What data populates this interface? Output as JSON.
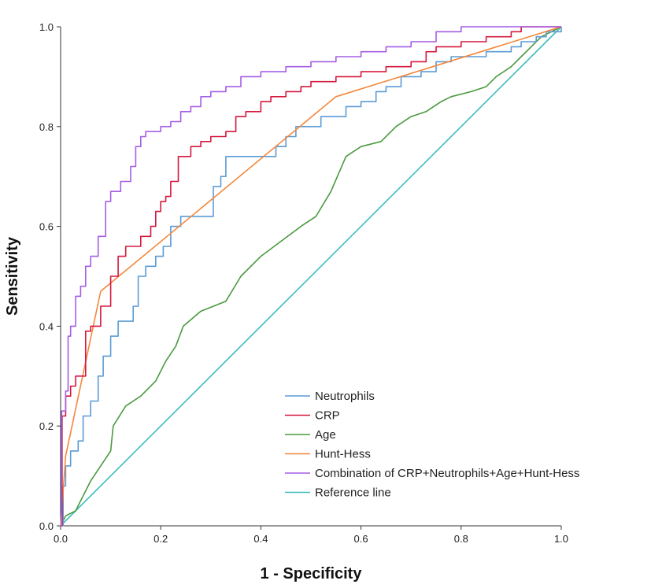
{
  "chart_data": {
    "type": "line",
    "title": "",
    "xlabel": "1 - Specificity",
    "ylabel": "Sensitivity",
    "xlim": [
      0,
      1
    ],
    "ylim": [
      0,
      1
    ],
    "xticks": [
      "0.0",
      "0.2",
      "0.4",
      "0.6",
      "0.8",
      "1.0"
    ],
    "yticks": [
      "0.0",
      "0.2",
      "0.4",
      "0.6",
      "0.8",
      "1.0"
    ],
    "legend_position": "bottom-right",
    "series": [
      {
        "name": "Neutrophils",
        "color": "#5b9bd5",
        "step": true,
        "points": [
          [
            0,
            0
          ],
          [
            0.005,
            0.08
          ],
          [
            0.01,
            0.12
          ],
          [
            0.02,
            0.15
          ],
          [
            0.035,
            0.17
          ],
          [
            0.045,
            0.22
          ],
          [
            0.06,
            0.25
          ],
          [
            0.075,
            0.3
          ],
          [
            0.085,
            0.34
          ],
          [
            0.1,
            0.38
          ],
          [
            0.115,
            0.41
          ],
          [
            0.13,
            0.41
          ],
          [
            0.145,
            0.44
          ],
          [
            0.155,
            0.5
          ],
          [
            0.17,
            0.52
          ],
          [
            0.19,
            0.54
          ],
          [
            0.205,
            0.56
          ],
          [
            0.22,
            0.6
          ],
          [
            0.24,
            0.62
          ],
          [
            0.3,
            0.62
          ],
          [
            0.305,
            0.68
          ],
          [
            0.32,
            0.7
          ],
          [
            0.33,
            0.74
          ],
          [
            0.42,
            0.74
          ],
          [
            0.43,
            0.76
          ],
          [
            0.45,
            0.78
          ],
          [
            0.47,
            0.8
          ],
          [
            0.5,
            0.8
          ],
          [
            0.52,
            0.82
          ],
          [
            0.55,
            0.82
          ],
          [
            0.57,
            0.84
          ],
          [
            0.6,
            0.85
          ],
          [
            0.63,
            0.87
          ],
          [
            0.65,
            0.88
          ],
          [
            0.68,
            0.9
          ],
          [
            0.72,
            0.91
          ],
          [
            0.75,
            0.93
          ],
          [
            0.78,
            0.94
          ],
          [
            0.8,
            0.94
          ],
          [
            0.85,
            0.95
          ],
          [
            0.9,
            0.96
          ],
          [
            0.92,
            0.97
          ],
          [
            0.95,
            0.98
          ],
          [
            0.97,
            0.99
          ],
          [
            1,
            1
          ]
        ]
      },
      {
        "name": "CRP",
        "color": "#d4183d",
        "step": true,
        "points": [
          [
            0,
            0
          ],
          [
            0.003,
            0.22
          ],
          [
            0.01,
            0.26
          ],
          [
            0.02,
            0.28
          ],
          [
            0.03,
            0.3
          ],
          [
            0.05,
            0.39
          ],
          [
            0.06,
            0.4
          ],
          [
            0.08,
            0.44
          ],
          [
            0.1,
            0.5
          ],
          [
            0.115,
            0.54
          ],
          [
            0.13,
            0.56
          ],
          [
            0.16,
            0.58
          ],
          [
            0.18,
            0.6
          ],
          [
            0.19,
            0.63
          ],
          [
            0.2,
            0.65
          ],
          [
            0.21,
            0.66
          ],
          [
            0.22,
            0.69
          ],
          [
            0.235,
            0.74
          ],
          [
            0.26,
            0.76
          ],
          [
            0.28,
            0.77
          ],
          [
            0.3,
            0.78
          ],
          [
            0.33,
            0.79
          ],
          [
            0.35,
            0.82
          ],
          [
            0.37,
            0.83
          ],
          [
            0.4,
            0.85
          ],
          [
            0.42,
            0.86
          ],
          [
            0.45,
            0.87
          ],
          [
            0.48,
            0.88
          ],
          [
            0.5,
            0.89
          ],
          [
            0.55,
            0.9
          ],
          [
            0.6,
            0.91
          ],
          [
            0.65,
            0.92
          ],
          [
            0.7,
            0.93
          ],
          [
            0.73,
            0.95
          ],
          [
            0.75,
            0.96
          ],
          [
            0.8,
            0.97
          ],
          [
            0.85,
            0.98
          ],
          [
            0.9,
            0.99
          ],
          [
            0.92,
            1
          ],
          [
            1,
            1
          ]
        ]
      },
      {
        "name": "Age",
        "color": "#4a9a3f",
        "step": false,
        "points": [
          [
            0,
            0
          ],
          [
            0.01,
            0.02
          ],
          [
            0.03,
            0.03
          ],
          [
            0.04,
            0.05
          ],
          [
            0.05,
            0.07
          ],
          [
            0.06,
            0.09
          ],
          [
            0.08,
            0.12
          ],
          [
            0.1,
            0.15
          ],
          [
            0.105,
            0.2
          ],
          [
            0.13,
            0.24
          ],
          [
            0.16,
            0.26
          ],
          [
            0.19,
            0.29
          ],
          [
            0.21,
            0.33
          ],
          [
            0.23,
            0.36
          ],
          [
            0.245,
            0.4
          ],
          [
            0.28,
            0.43
          ],
          [
            0.33,
            0.45
          ],
          [
            0.36,
            0.5
          ],
          [
            0.4,
            0.54
          ],
          [
            0.44,
            0.57
          ],
          [
            0.48,
            0.6
          ],
          [
            0.51,
            0.62
          ],
          [
            0.54,
            0.67
          ],
          [
            0.57,
            0.74
          ],
          [
            0.6,
            0.76
          ],
          [
            0.64,
            0.77
          ],
          [
            0.67,
            0.8
          ],
          [
            0.7,
            0.82
          ],
          [
            0.73,
            0.83
          ],
          [
            0.76,
            0.85
          ],
          [
            0.78,
            0.86
          ],
          [
            0.82,
            0.87
          ],
          [
            0.85,
            0.88
          ],
          [
            0.87,
            0.9
          ],
          [
            0.9,
            0.92
          ],
          [
            0.92,
            0.94
          ],
          [
            0.94,
            0.96
          ],
          [
            0.96,
            0.98
          ],
          [
            1,
            1
          ]
        ]
      },
      {
        "name": "Hunt-Hess",
        "color": "#f4873c",
        "step": false,
        "points": [
          [
            0,
            0
          ],
          [
            0.01,
            0.14
          ],
          [
            0.08,
            0.47
          ],
          [
            0.55,
            0.86
          ],
          [
            1,
            1
          ]
        ]
      },
      {
        "name": "Combination of CRP+Neutrophils+Age+Hunt-Hess",
        "color": "#a45ee5",
        "step": true,
        "points": [
          [
            0,
            0
          ],
          [
            0.002,
            0.23
          ],
          [
            0.01,
            0.27
          ],
          [
            0.015,
            0.38
          ],
          [
            0.02,
            0.4
          ],
          [
            0.03,
            0.46
          ],
          [
            0.04,
            0.48
          ],
          [
            0.05,
            0.52
          ],
          [
            0.06,
            0.54
          ],
          [
            0.075,
            0.58
          ],
          [
            0.09,
            0.65
          ],
          [
            0.1,
            0.67
          ],
          [
            0.12,
            0.69
          ],
          [
            0.14,
            0.72
          ],
          [
            0.15,
            0.76
          ],
          [
            0.16,
            0.78
          ],
          [
            0.17,
            0.79
          ],
          [
            0.2,
            0.8
          ],
          [
            0.22,
            0.81
          ],
          [
            0.24,
            0.83
          ],
          [
            0.26,
            0.84
          ],
          [
            0.28,
            0.86
          ],
          [
            0.3,
            0.87
          ],
          [
            0.33,
            0.88
          ],
          [
            0.36,
            0.9
          ],
          [
            0.4,
            0.91
          ],
          [
            0.45,
            0.92
          ],
          [
            0.5,
            0.93
          ],
          [
            0.55,
            0.94
          ],
          [
            0.6,
            0.95
          ],
          [
            0.65,
            0.96
          ],
          [
            0.7,
            0.97
          ],
          [
            0.75,
            0.99
          ],
          [
            0.8,
            1
          ],
          [
            1,
            1
          ]
        ]
      },
      {
        "name": "Reference line",
        "color": "#3dbdbd",
        "step": false,
        "points": [
          [
            0,
            0
          ],
          [
            1,
            1
          ]
        ]
      }
    ]
  }
}
